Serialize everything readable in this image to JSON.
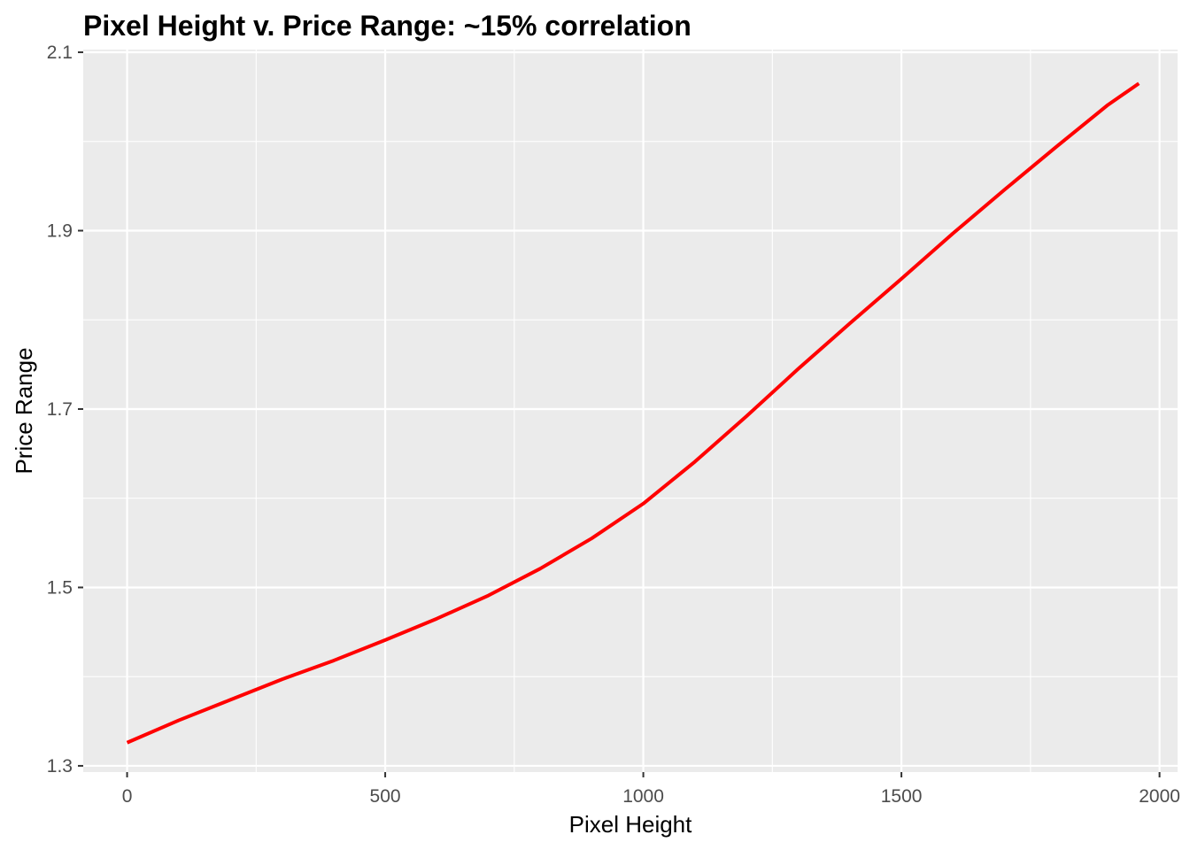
{
  "chart_data": {
    "type": "line",
    "title": "Pixel Height v. Price Range: ~15% correlation",
    "xlabel": "Pixel Height",
    "ylabel": "Price Range",
    "xlim": [
      -85,
      2035
    ],
    "ylim": [
      1.293,
      2.103
    ],
    "x_ticks": [
      0,
      500,
      1000,
      1500,
      2000
    ],
    "x_tick_labels": [
      "0",
      "500",
      "1000",
      "1500",
      "2000"
    ],
    "y_ticks": [
      1.3,
      1.5,
      1.7,
      1.9,
      2.1
    ],
    "y_tick_labels": [
      "1.3",
      "1.5",
      "1.7",
      "1.9",
      "2.1"
    ],
    "grid": true,
    "panel_color": "#ebebeb",
    "grid_color": "#ffffff",
    "series": [
      {
        "color": "#ff0000",
        "x": [
          0,
          100,
          200,
          300,
          400,
          500,
          600,
          700,
          800,
          900,
          1000,
          1100,
          1200,
          1300,
          1400,
          1500,
          1600,
          1700,
          1800,
          1900,
          1960
        ],
        "y": [
          1.326,
          1.351,
          1.374,
          1.397,
          1.418,
          1.441,
          1.465,
          1.491,
          1.521,
          1.555,
          1.594,
          1.641,
          1.692,
          1.745,
          1.796,
          1.846,
          1.897,
          1.946,
          1.994,
          2.041,
          2.065
        ]
      }
    ]
  }
}
